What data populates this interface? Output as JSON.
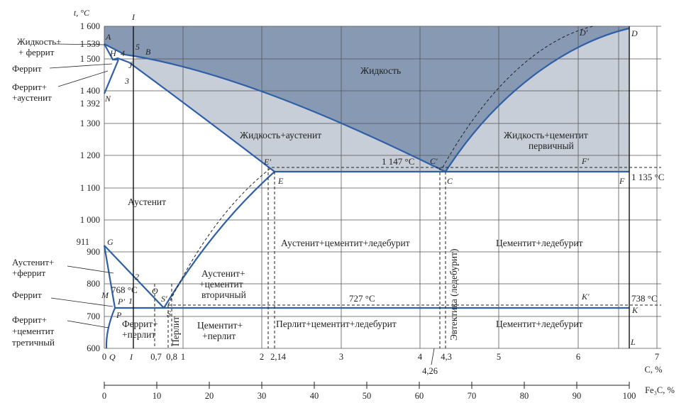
{
  "title": "",
  "axes": {
    "y_title": "t, °C",
    "y_ticks": [
      "1 600",
      "1 500",
      "1 400",
      "1 300",
      "1 200",
      "1 100",
      "1 000",
      "900",
      "800",
      "700",
      "600"
    ],
    "y_special": [
      "1 539",
      "1 392",
      "911"
    ],
    "c_title": "C, %",
    "c_ticks": [
      "0",
      "1",
      "2",
      "3",
      "4",
      "5",
      "6",
      "7"
    ],
    "c_special": [
      "0,7",
      "0,8",
      "2,14",
      "4,3",
      "4,26"
    ],
    "fe3c_title": "Fe₃C, %",
    "fe3c_ticks": [
      "0",
      "10",
      "20",
      "30",
      "40",
      "50",
      "60",
      "70",
      "80",
      "90",
      "100"
    ]
  },
  "points": {
    "A": "A",
    "B": "B",
    "H": "H",
    "J": "J",
    "N": "N",
    "D": "D",
    "Dp": "D′",
    "E": "E",
    "Ep": "E′",
    "C": "C",
    "Cp": "C′",
    "F": "F",
    "Fp": "F′",
    "G": "G",
    "O": "O",
    "S": "S",
    "Sp": "S′",
    "P": "P",
    "Pp": "P′",
    "M": "M",
    "Q": "Q",
    "K": "K",
    "Kp": "K′",
    "L": "L",
    "I_top": "I",
    "I_bottom": "I",
    "n1": "1",
    "n2": "2",
    "n3": "3",
    "n4": "4",
    "n5": "5"
  },
  "temps": {
    "t1147": "1 147 °C",
    "t1135": "1 135 °C",
    "t768": "768 °C",
    "t727": "727 °C",
    "t738": "738 °C"
  },
  "regions": {
    "liquid": "Жидкость",
    "liq_aust": "Жидкость+аустенит",
    "liq_cem1": "Жидкость+цементит",
    "liq_cem2": "первичный",
    "austenite": "Аустенит",
    "aust_cem_led": "Аустенит+цементит+ледебурит",
    "cem_led_upper": "Цементит+ледебурит",
    "cem_led_lower": "Цементит+ледебурит",
    "aust_cem2_1": "Аустенит+",
    "aust_cem2_2": "+цементит",
    "aust_cem2_3": "вторичный",
    "ferr_perl_1": "Феррит+",
    "ferr_perl_2": "+перлит",
    "pearlite": "Перлит",
    "cem_perl_1": "Цементит+",
    "cem_perl_2": "+перлит",
    "perl_cem_led": "Перлит+цементит+ледебурит",
    "eutectic": "Эвтектика (ледебурит)"
  },
  "callouts": {
    "liq_ferr_1": "Жидкость+",
    "liq_ferr_2": "+ феррит",
    "ferrite_top": "Феррит",
    "ferr_aust_1": "Феррит+",
    "ferr_aust_2": "+аустенит",
    "aust_ferr_1": "Аустенит+",
    "aust_ferr_2": "+феррит",
    "ferrite_mid": "Феррит",
    "ferr_cem3_1": "Феррит+",
    "ferr_cem3_2": "+цементит",
    "ferr_cem3_3": "третичный"
  },
  "colors": {
    "liquid": "#8799b3",
    "liquid_solid": "#c8ced7",
    "line": "#2f5fa6",
    "grid": "#555555"
  }
}
